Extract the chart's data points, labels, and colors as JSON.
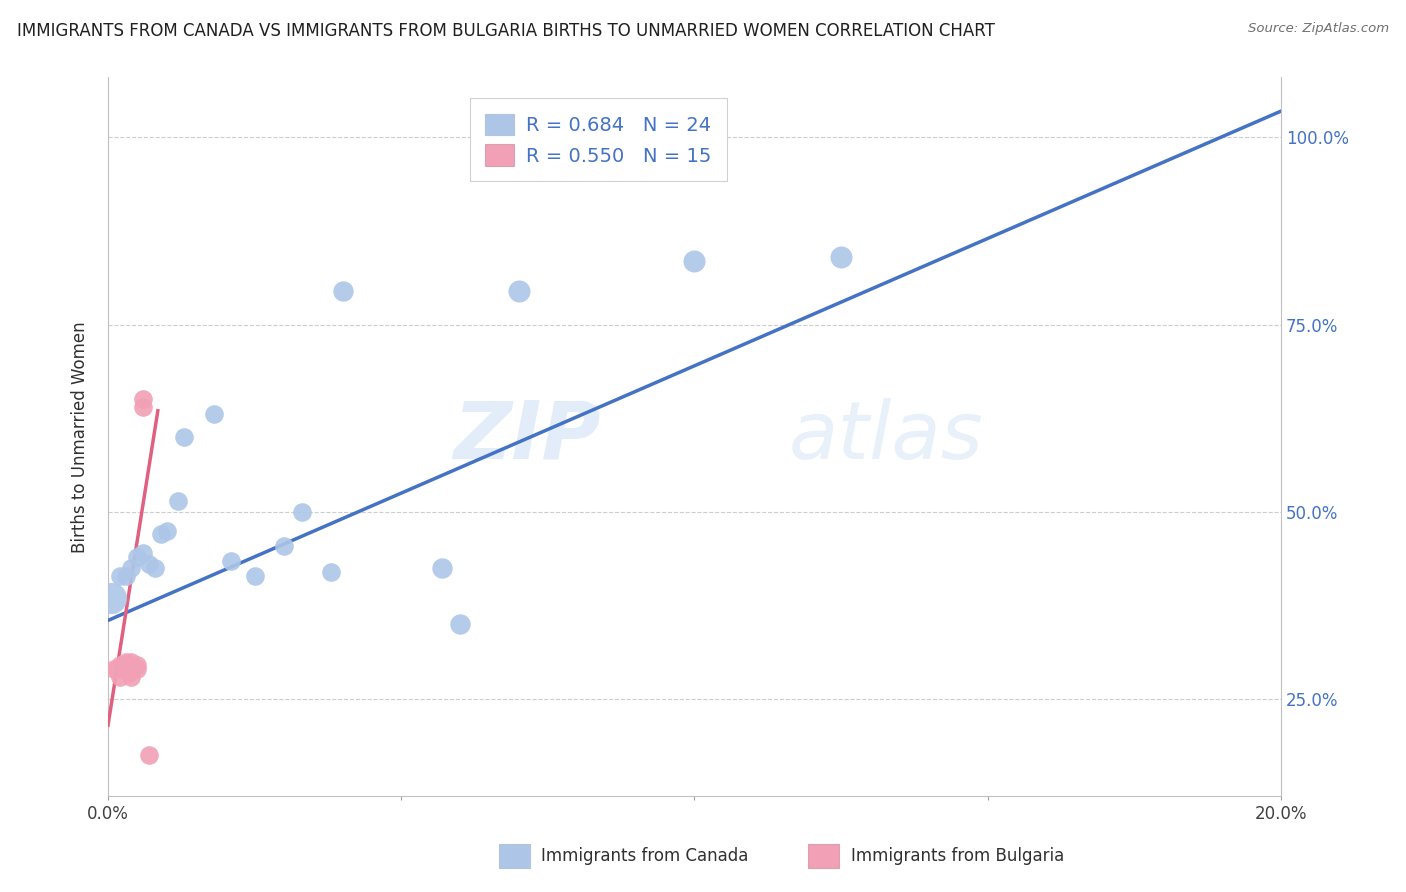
{
  "title": "IMMIGRANTS FROM CANADA VS IMMIGRANTS FROM BULGARIA BIRTHS TO UNMARRIED WOMEN CORRELATION CHART",
  "source": "Source: ZipAtlas.com",
  "ylabel": "Births to Unmarried Women",
  "x_min": 0.0,
  "x_max": 0.2,
  "y_min": 0.12,
  "y_max": 1.08,
  "x_ticks": [
    0.0,
    0.05,
    0.1,
    0.15,
    0.2
  ],
  "x_tick_labels": [
    "0.0%",
    "",
    "",
    "",
    "20.0%"
  ],
  "y_ticks": [
    0.25,
    0.5,
    0.75,
    1.0
  ],
  "y_tick_labels": [
    "25.0%",
    "50.0%",
    "75.0%",
    "100.0%"
  ],
  "legend_label1": "Immigrants from Canada",
  "legend_label2": "Immigrants from Bulgaria",
  "watermark_zip": "ZIP",
  "watermark_atlas": "atlas",
  "blue_color": "#adc6e8",
  "pink_color": "#f2a0b5",
  "line_blue": "#4472c4",
  "line_pink": "#e06080",
  "line_dashed_color": "#c0aad0",
  "tick_blue": "#4472c4",
  "canada_points": [
    [
      0.0005,
      0.385,
      28
    ],
    [
      0.002,
      0.415,
      10
    ],
    [
      0.003,
      0.415,
      10
    ],
    [
      0.004,
      0.425,
      10
    ],
    [
      0.005,
      0.44,
      10
    ],
    [
      0.006,
      0.445,
      10
    ],
    [
      0.007,
      0.43,
      10
    ],
    [
      0.008,
      0.425,
      10
    ],
    [
      0.009,
      0.47,
      10
    ],
    [
      0.01,
      0.475,
      10
    ],
    [
      0.012,
      0.515,
      10
    ],
    [
      0.013,
      0.6,
      10
    ],
    [
      0.018,
      0.63,
      10
    ],
    [
      0.021,
      0.435,
      10
    ],
    [
      0.025,
      0.415,
      10
    ],
    [
      0.03,
      0.455,
      10
    ],
    [
      0.033,
      0.5,
      10
    ],
    [
      0.038,
      0.42,
      10
    ],
    [
      0.04,
      0.795,
      12
    ],
    [
      0.057,
      0.425,
      12
    ],
    [
      0.06,
      0.35,
      12
    ],
    [
      0.07,
      0.795,
      14
    ],
    [
      0.1,
      0.835,
      14
    ],
    [
      0.125,
      0.84,
      14
    ]
  ],
  "bulgaria_points": [
    [
      0.001,
      0.29,
      10
    ],
    [
      0.0015,
      0.29,
      10
    ],
    [
      0.002,
      0.295,
      10
    ],
    [
      0.002,
      0.28,
      10
    ],
    [
      0.002,
      0.29,
      10
    ],
    [
      0.003,
      0.295,
      10
    ],
    [
      0.003,
      0.3,
      10
    ],
    [
      0.0035,
      0.285,
      10
    ],
    [
      0.004,
      0.3,
      10
    ],
    [
      0.004,
      0.28,
      10
    ],
    [
      0.005,
      0.295,
      10
    ],
    [
      0.005,
      0.29,
      10
    ],
    [
      0.006,
      0.64,
      10
    ],
    [
      0.006,
      0.65,
      10
    ],
    [
      0.007,
      0.175,
      10
    ]
  ],
  "canada_line_x": [
    0.0,
    0.2
  ],
  "canada_line_y": [
    0.355,
    1.035
  ],
  "bulgaria_line_x": [
    0.0,
    0.0085
  ],
  "bulgaria_line_y": [
    0.215,
    0.635
  ],
  "diagonal_line_x": [
    0.0,
    0.2
  ],
  "diagonal_line_y": [
    0.355,
    1.035
  ]
}
